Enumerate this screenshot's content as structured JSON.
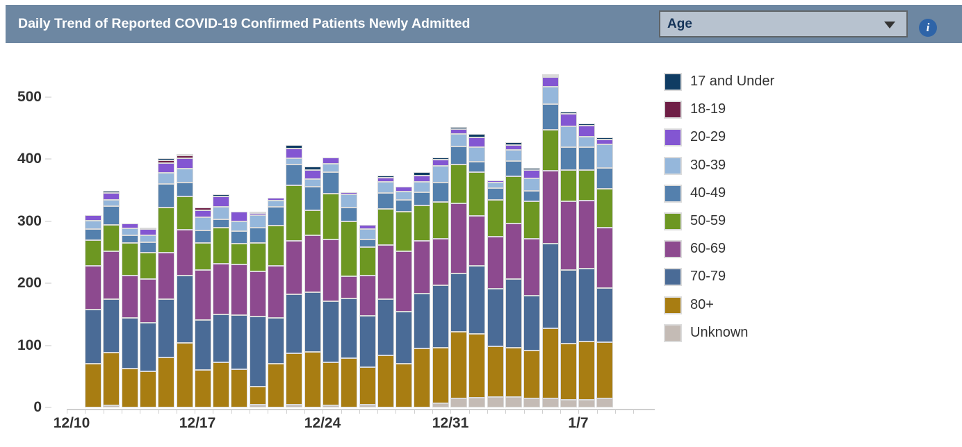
{
  "header": {
    "title": "Daily Trend of Reported COVID-19 Confirmed Patients Newly Admitted",
    "dropdown": {
      "value": "Age"
    },
    "info_icon_glyph": "i"
  },
  "colors": {
    "header_bg": "#6d87a2",
    "dropdown_bg": "#b7c2cf",
    "dropdown_text": "#16355a",
    "info_icon_bg": "#2e64a8",
    "axis_text": "#323232",
    "bar_outline": "#d9d9d9"
  },
  "legend": {
    "items": [
      {
        "label": "17 and Under",
        "color": "#0f3c63"
      },
      {
        "label": "18-19",
        "color": "#6e1e45"
      },
      {
        "label": "20-29",
        "color": "#8356d2"
      },
      {
        "label": "30-39",
        "color": "#95b7db"
      },
      {
        "label": "40-49",
        "color": "#5480ad"
      },
      {
        "label": "50-59",
        "color": "#6d9722"
      },
      {
        "label": "60-69",
        "color": "#8d4a8f"
      },
      {
        "label": "70-79",
        "color": "#4a6b96"
      },
      {
        "label": "80+",
        "color": "#a87d12"
      },
      {
        "label": "Unknown",
        "color": "#c4bbb5"
      }
    ]
  },
  "chart_data": {
    "type": "bar",
    "stacked": true,
    "title": "Daily Trend of Reported COVID-19 Confirmed Patients Newly Admitted",
    "xlabel": "",
    "ylabel": "",
    "ylim": [
      0,
      560
    ],
    "grid": false,
    "legend_position": "right",
    "yticks": [
      0,
      100,
      200,
      300,
      400,
      500
    ],
    "xtick_labels": [
      "12/10",
      "12/17",
      "12/24",
      "12/31",
      "1/7"
    ],
    "categories": [
      "12/11",
      "12/12",
      "12/13",
      "12/14",
      "12/15",
      "12/16",
      "12/17",
      "12/18",
      "12/19",
      "12/20",
      "12/21",
      "12/22",
      "12/23",
      "12/24",
      "12/25",
      "12/26",
      "12/27",
      "12/28",
      "12/29",
      "12/30",
      "12/31",
      "1/1",
      "1/2",
      "1/3",
      "1/4",
      "1/5",
      "1/6",
      "1/7",
      "1/8"
    ],
    "series": [
      {
        "name": "Unknown",
        "color": "#c4bbb5",
        "values": [
          0,
          3,
          0,
          0,
          0,
          0,
          0,
          0,
          0,
          4,
          0,
          5,
          0,
          3,
          0,
          4,
          0,
          0,
          0,
          7,
          15,
          16,
          17,
          17,
          14,
          14,
          12,
          12,
          15
        ]
      },
      {
        "name": "80+",
        "color": "#a87d12",
        "values": [
          70,
          85,
          63,
          58,
          80,
          104,
          60,
          73,
          62,
          30,
          70,
          82,
          89,
          70,
          79,
          61,
          84,
          70,
          95,
          89,
          107,
          103,
          82,
          79,
          78,
          114,
          91,
          94,
          90
        ]
      },
      {
        "name": "70-79",
        "color": "#4a6b96",
        "values": [
          88,
          87,
          81,
          79,
          94,
          108,
          81,
          77,
          87,
          113,
          74,
          95,
          97,
          98,
          97,
          83,
          91,
          84,
          88,
          101,
          94,
          109,
          92,
          111,
          88,
          136,
          119,
          118,
          87
        ]
      },
      {
        "name": "60-69",
        "color": "#8d4a8f",
        "values": [
          70,
          77,
          69,
          70,
          76,
          74,
          81,
          82,
          81,
          72,
          84,
          87,
          91,
          100,
          36,
          65,
          87,
          98,
          86,
          75,
          113,
          81,
          84,
          90,
          92,
          118,
          110,
          109,
          98
        ]
      },
      {
        "name": "50-59",
        "color": "#6d9722",
        "values": [
          42,
          42,
          52,
          42,
          72,
          54,
          43,
          58,
          34,
          46,
          65,
          89,
          41,
          74,
          88,
          45,
          58,
          64,
          56,
          59,
          62,
          70,
          60,
          76,
          60,
          65,
          51,
          50,
          62
        ]
      },
      {
        "name": "40-49",
        "color": "#5480ad",
        "values": [
          17,
          30,
          13,
          17,
          38,
          23,
          20,
          13,
          20,
          25,
          30,
          34,
          38,
          34,
          22,
          13,
          26,
          18,
          22,
          32,
          30,
          17,
          18,
          24,
          17,
          42,
          36,
          36,
          34
        ]
      },
      {
        "name": "30-39",
        "color": "#95b7db",
        "values": [
          14,
          10,
          11,
          12,
          18,
          22,
          22,
          20,
          16,
          20,
          10,
          10,
          12,
          14,
          22,
          17,
          18,
          14,
          17,
          26,
          20,
          24,
          10,
          18,
          20,
          28,
          34,
          17,
          38
        ]
      },
      {
        "name": "20-29",
        "color": "#8356d2",
        "values": [
          9,
          12,
          8,
          9,
          16,
          17,
          11,
          17,
          16,
          3,
          5,
          15,
          15,
          10,
          3,
          6,
          6,
          8,
          10,
          10,
          8,
          15,
          3,
          8,
          14,
          16,
          20,
          18,
          8
        ]
      },
      {
        "name": "18-19",
        "color": "#6e1e45",
        "values": [
          0,
          0,
          0,
          3,
          4,
          4,
          4,
          0,
          0,
          0,
          0,
          0,
          0,
          0,
          0,
          0,
          0,
          0,
          0,
          0,
          0,
          0,
          0,
          0,
          0,
          2,
          0,
          0,
          0
        ]
      },
      {
        "name": "17 and Under",
        "color": "#0f3c63",
        "values": [
          0,
          3,
          0,
          0,
          4,
          2,
          0,
          3,
          0,
          2,
          0,
          6,
          5,
          0,
          0,
          0,
          4,
          0,
          5,
          4,
          3,
          6,
          0,
          4,
          3,
          2,
          4,
          4,
          3
        ]
      }
    ]
  }
}
